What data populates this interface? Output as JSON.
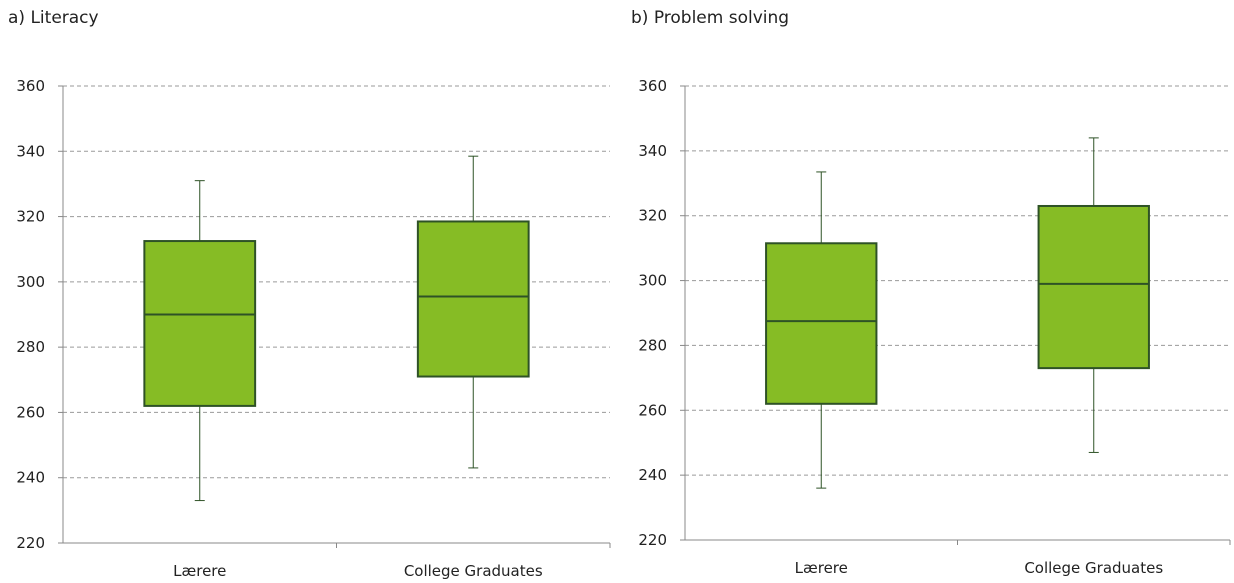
{
  "colors": {
    "box_fill": "#86bc25",
    "box_stroke": "#2e5226",
    "whisker": "#2e5226",
    "grid": "#9a9a9a",
    "axis": "#888888"
  },
  "chart_data": [
    {
      "type": "boxplot",
      "title": "a) Literacy",
      "categories": [
        "Lærere",
        "College Graduates"
      ],
      "yticks": [
        220,
        240,
        260,
        280,
        300,
        320,
        340,
        360
      ],
      "ylim": [
        220,
        360
      ],
      "grid": true,
      "boxes": [
        {
          "category": "Lærere",
          "min": 233,
          "q1": 262,
          "median": 290,
          "q3": 312.5,
          "max": 331
        },
        {
          "category": "College Graduates",
          "min": 243,
          "q1": 271,
          "median": 295.5,
          "q3": 318.5,
          "max": 338.5
        }
      ]
    },
    {
      "type": "boxplot",
      "title": "b) Problem solving",
      "categories": [
        "Lærere",
        "College Graduates"
      ],
      "yticks": [
        220,
        240,
        260,
        280,
        300,
        320,
        340,
        360
      ],
      "ylim": [
        220,
        360
      ],
      "grid": true,
      "boxes": [
        {
          "category": "Lærere",
          "min": 236,
          "q1": 262,
          "median": 287.5,
          "q3": 311.5,
          "max": 333.5
        },
        {
          "category": "College Graduates",
          "min": 247,
          "q1": 273,
          "median": 299,
          "q3": 323,
          "max": 344
        }
      ]
    }
  ]
}
